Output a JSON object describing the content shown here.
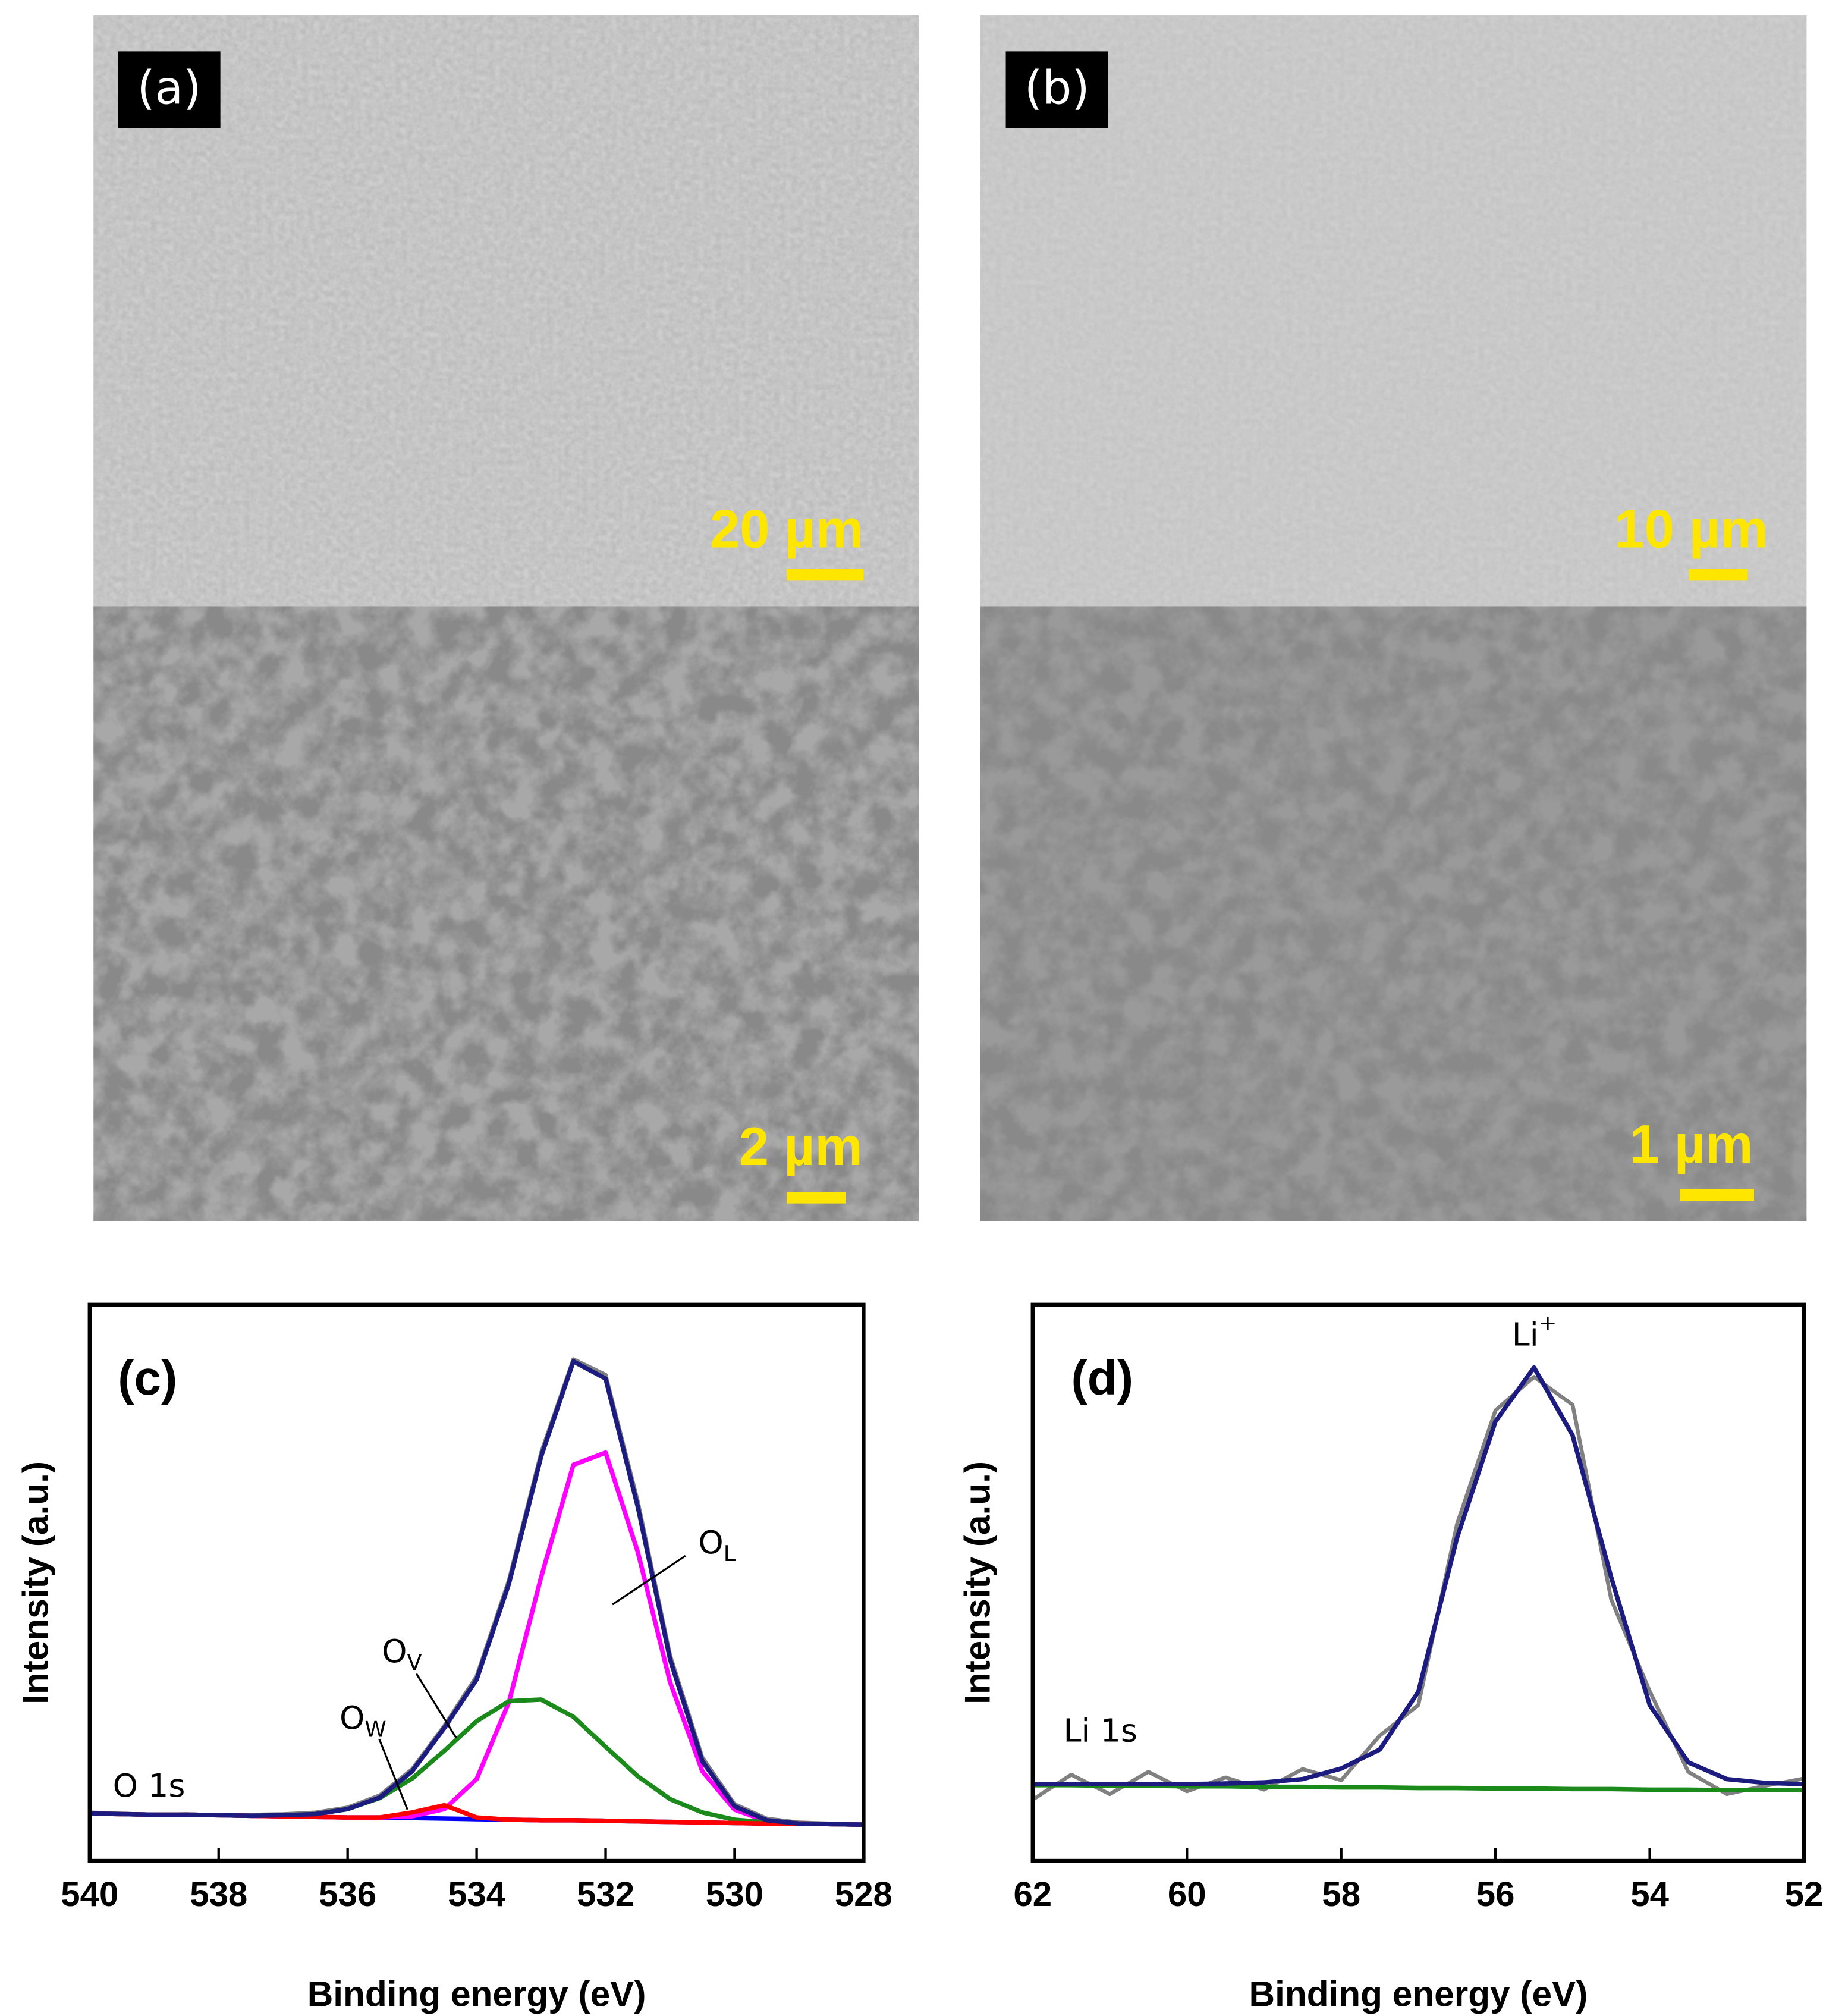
{
  "images": [
    {
      "label": "(a)",
      "scale_bars": [
        "20 µm",
        "2 µm"
      ]
    },
    {
      "label": "(b)",
      "scale_bars": [
        "10 µm",
        "1 µm"
      ]
    }
  ],
  "chart_data": [
    {
      "type": "line",
      "label": "(c)",
      "x_label": "Binding energy (eV)",
      "y_label": "Intensity (a.u.)",
      "x": [
        540,
        539.5,
        539,
        538.5,
        538,
        537.5,
        537,
        536.5,
        536,
        535.5,
        535,
        534.5,
        534,
        533.5,
        533,
        532.5,
        532,
        531.5,
        531,
        530.5,
        530,
        529.5,
        529,
        528.5,
        528
      ],
      "xlim": [
        540,
        528
      ],
      "xticks": [
        540,
        538,
        536,
        534,
        532,
        530,
        528
      ],
      "ylim": [
        0,
        100
      ],
      "series": [
        {
          "color": "#808080",
          "values": [
            8.7,
            8.5,
            8.3,
            8.4,
            8.2,
            8.3,
            8.4,
            8.7,
            9.6,
            11.8,
            16.5,
            24.3,
            33.2,
            50.5,
            73.4,
            90.2,
            87.4,
            64.6,
            37.0,
            18.6,
            10.2,
            7.6,
            6.9,
            6.7,
            6.6
          ]
        },
        {
          "color": "#0000ff",
          "values": [
            8.5,
            8.4,
            8.3,
            8.3,
            8.2,
            8.1,
            8.0,
            7.9,
            7.8,
            7.8,
            7.7,
            7.6,
            7.5,
            7.4,
            7.3,
            7.3,
            7.2,
            7.1,
            7.0,
            6.9,
            6.8,
            6.7,
            6.7,
            6.6,
            6.5
          ]
        },
        {
          "color": "#ff00ff",
          "values": [
            8.5,
            8.4,
            8.3,
            8.3,
            8.2,
            8.1,
            8.0,
            7.9,
            7.8,
            7.8,
            8.0,
            9.3,
            14.7,
            28.5,
            51.0,
            71.2,
            73.4,
            55.5,
            32.1,
            16.1,
            9.2,
            7.1,
            6.7,
            6.6,
            6.5
          ]
        },
        {
          "color": "#1a8a1a",
          "values": [
            8.5,
            8.4,
            8.3,
            8.3,
            8.2,
            8.1,
            8.2,
            8.4,
            9.3,
            11.3,
            14.8,
            19.8,
            25.1,
            28.7,
            29.0,
            25.9,
            20.5,
            15.2,
            11.1,
            8.7,
            7.4,
            6.9,
            6.7,
            6.6,
            6.5
          ]
        },
        {
          "color": "#ff0000",
          "values": [
            8.5,
            8.4,
            8.3,
            8.3,
            8.2,
            8.1,
            8.0,
            7.9,
            7.8,
            7.8,
            8.7,
            10.0,
            7.8,
            7.4,
            7.3,
            7.3,
            7.2,
            7.1,
            7.0,
            6.9,
            6.8,
            6.7,
            6.7,
            6.6,
            6.5
          ]
        },
        {
          "color": "#1c1c80",
          "values": [
            8.5,
            8.4,
            8.3,
            8.3,
            8.2,
            8.1,
            8.2,
            8.4,
            9.3,
            11.4,
            16.1,
            23.9,
            32.6,
            49.8,
            72.7,
            89.8,
            86.7,
            63.6,
            36.2,
            17.9,
            9.8,
            7.3,
            6.7,
            6.6,
            6.5
          ]
        }
      ],
      "annotations": [
        {
          "text": "O 1s"
        },
        {
          "text": "O",
          "subscript": "L"
        },
        {
          "text": "O",
          "subscript": "V"
        },
        {
          "text": "O",
          "subscript": "W"
        }
      ]
    },
    {
      "type": "line",
      "label": "(d)",
      "x_label": "Binding energy (eV)",
      "y_label": "Intensity (a.u.)",
      "x": [
        62,
        61.5,
        61,
        60.5,
        60,
        59.5,
        59,
        58.5,
        58,
        57.5,
        57,
        56.5,
        56,
        55.5,
        55,
        54.5,
        54,
        53.5,
        53,
        52.5,
        52
      ],
      "xlim": [
        62,
        52
      ],
      "xticks": [
        62,
        60,
        58,
        56,
        54,
        52
      ],
      "ylim": [
        0,
        100
      ],
      "series": [
        {
          "color": "#808080",
          "values": [
            11.0,
            15.5,
            12.0,
            16.0,
            12.5,
            15.0,
            12.8,
            16.5,
            14.5,
            22.5,
            28.0,
            60.5,
            81.0,
            87.0,
            82.0,
            47.0,
            30.5,
            16.0,
            12.0,
            13.5,
            14.8
          ]
        },
        {
          "color": "#1a8a1a",
          "values": [
            13.6,
            13.6,
            13.5,
            13.5,
            13.4,
            13.4,
            13.3,
            13.3,
            13.2,
            13.2,
            13.1,
            13.1,
            13.0,
            13.0,
            12.9,
            12.9,
            12.8,
            12.8,
            12.7,
            12.7,
            12.7
          ]
        },
        {
          "color": "#1c1c80",
          "values": [
            13.8,
            13.8,
            13.8,
            13.8,
            13.8,
            13.9,
            14.1,
            14.7,
            16.6,
            20.0,
            30.4,
            58.0,
            79.0,
            88.7,
            76.5,
            51.0,
            28.0,
            17.7,
            14.7,
            14.0,
            13.8
          ]
        }
      ],
      "annotations": [
        {
          "text": "Li 1s"
        },
        {
          "text": "Li",
          "superscript": "+"
        }
      ]
    }
  ]
}
